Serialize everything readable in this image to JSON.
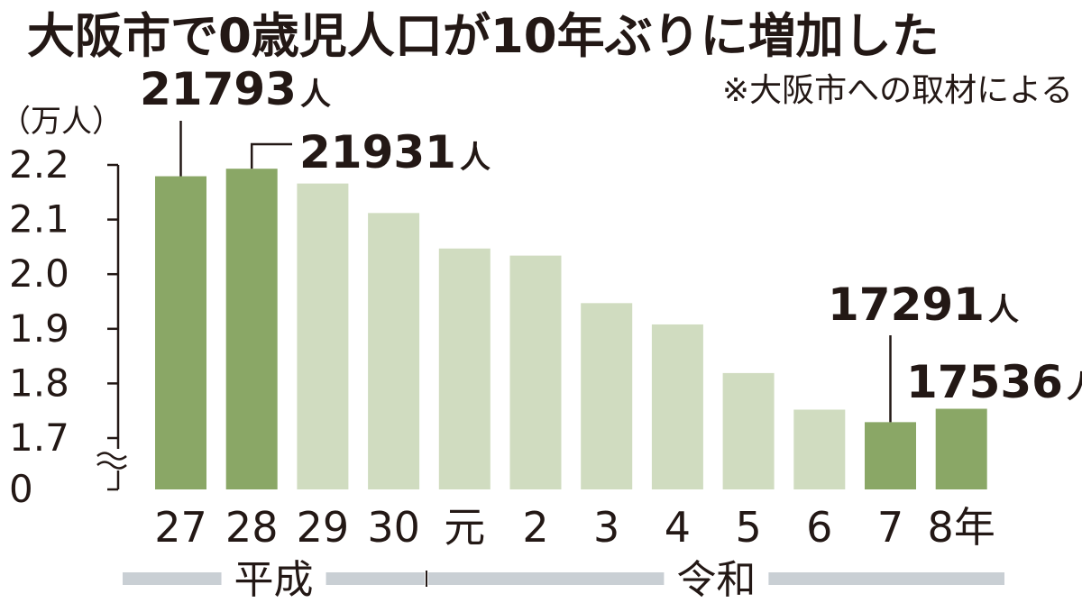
{
  "chart_data": {
    "type": "bar",
    "title": "大阪市で0歳児人口が10年ぶりに増加した",
    "note": "※大阪市への取材による",
    "ylabel": "（万人）",
    "ylim": [
      1.7,
      2.2
    ],
    "axis_break": true,
    "yticks": [
      {
        "value": 2.2,
        "label": "2.2"
      },
      {
        "value": 2.1,
        "label": "2.1"
      },
      {
        "value": 2.0,
        "label": "2.0"
      },
      {
        "value": 1.9,
        "label": "1.9"
      },
      {
        "value": 1.8,
        "label": "1.8"
      },
      {
        "value": 1.7,
        "label": "1.7"
      }
    ],
    "baseline_label": "0",
    "categories": [
      "27",
      "28",
      "29",
      "30",
      "元",
      "2",
      "3",
      "4",
      "5",
      "6",
      "7",
      "8年"
    ],
    "values": [
      2.1793,
      2.1931,
      2.166,
      2.112,
      2.047,
      2.034,
      1.947,
      1.908,
      1.819,
      1.752,
      1.7291,
      1.7536
    ],
    "highlight": [
      true,
      true,
      false,
      false,
      false,
      false,
      false,
      false,
      false,
      false,
      true,
      true
    ],
    "data_labels": [
      {
        "index": 0,
        "number": "21793",
        "unit": "人"
      },
      {
        "index": 1,
        "number": "21931",
        "unit": "人"
      },
      {
        "index": 10,
        "number": "17291",
        "unit": "人"
      },
      {
        "index": 11,
        "number": "17536",
        "unit": "人"
      }
    ],
    "eras": [
      {
        "label": "平成",
        "from": 0,
        "to": 3
      },
      {
        "label": "令和",
        "from": 4,
        "to": 11
      }
    ],
    "colors": {
      "highlight": "#8aa766",
      "normal": "#d0dcc0",
      "era_band": "#c9cfd4",
      "text": "#231815"
    }
  }
}
